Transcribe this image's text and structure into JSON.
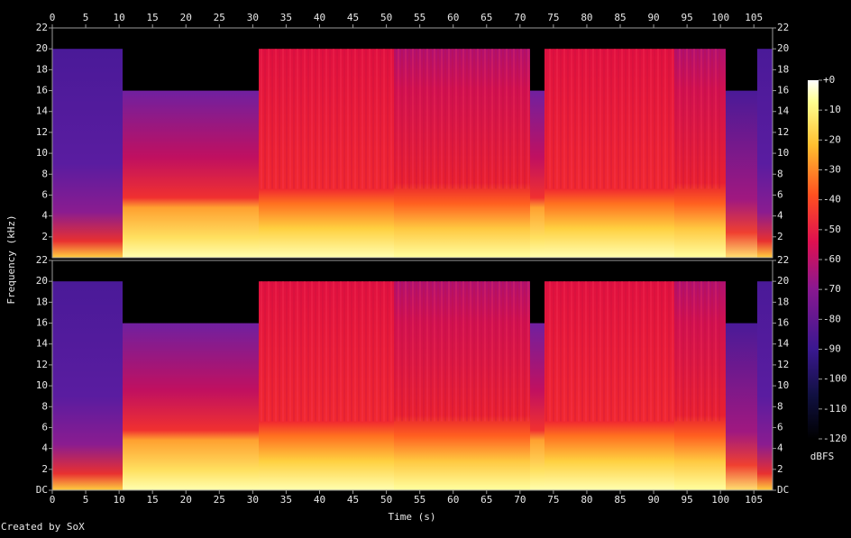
{
  "chart_data": {
    "type": "spectrogram",
    "x_label": "Time (s)",
    "y_label": "Frequency (kHz)",
    "credit": "Created by SoX",
    "xlim": [
      0,
      107.8
    ],
    "xticks": [
      0,
      5,
      10,
      15,
      20,
      25,
      30,
      35,
      40,
      45,
      50,
      55,
      60,
      65,
      70,
      75,
      80,
      85,
      90,
      95,
      100,
      105
    ],
    "panels": [
      {
        "ylim": [
          0,
          22
        ],
        "yticks": [
          2,
          4,
          6,
          8,
          10,
          12,
          14,
          16,
          18,
          20,
          22
        ]
      },
      {
        "ylim": [
          0,
          22
        ],
        "yticks": [
          {
            "value": 0,
            "label": "DC"
          },
          2,
          4,
          6,
          8,
          10,
          12,
          14,
          16,
          18,
          20,
          22
        ]
      }
    ],
    "colorbar": {
      "label": "dBFS",
      "lim": [
        -120,
        0
      ],
      "ticks": [
        {
          "value": 0,
          "label": "+0"
        },
        -10,
        -20,
        -30,
        -40,
        -50,
        -60,
        -70,
        -80,
        -90,
        -100,
        -110,
        -120
      ]
    }
  }
}
